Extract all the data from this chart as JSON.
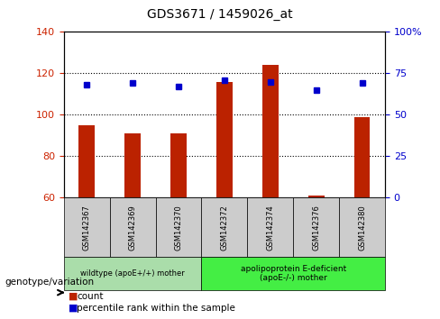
{
  "title": "GDS3671 / 1459026_at",
  "samples": [
    "GSM142367",
    "GSM142369",
    "GSM142370",
    "GSM142372",
    "GSM142374",
    "GSM142376",
    "GSM142380"
  ],
  "counts": [
    95,
    91,
    91,
    116,
    124,
    61,
    99
  ],
  "percentile_ranks": [
    68,
    69,
    67,
    71,
    70,
    65,
    69
  ],
  "ylim_left": [
    60,
    140
  ],
  "yticks_left": [
    60,
    80,
    100,
    120,
    140
  ],
  "ylim_right": [
    0,
    100
  ],
  "yticks_right": [
    0,
    25,
    50,
    75,
    100
  ],
  "bar_color": "#bb2200",
  "dot_color": "#0000cc",
  "bar_bottom": 60,
  "group1_label": "wildtype (apoE+/+) mother",
  "group1_color": "#aaddaa",
  "group2_label": "apolipoprotein E-deficient\n(apoE-/-) mother",
  "group2_color": "#44ee44",
  "grid_dotted_at": [
    80,
    100,
    120
  ],
  "tick_color_left": "#cc2200",
  "tick_color_right": "#0000cc",
  "legend_red_label": "count",
  "legend_blue_label": "percentile rank within the sample",
  "genotype_label": "genotype/variation",
  "sample_bg_color": "#cccccc",
  "bar_width": 0.35
}
